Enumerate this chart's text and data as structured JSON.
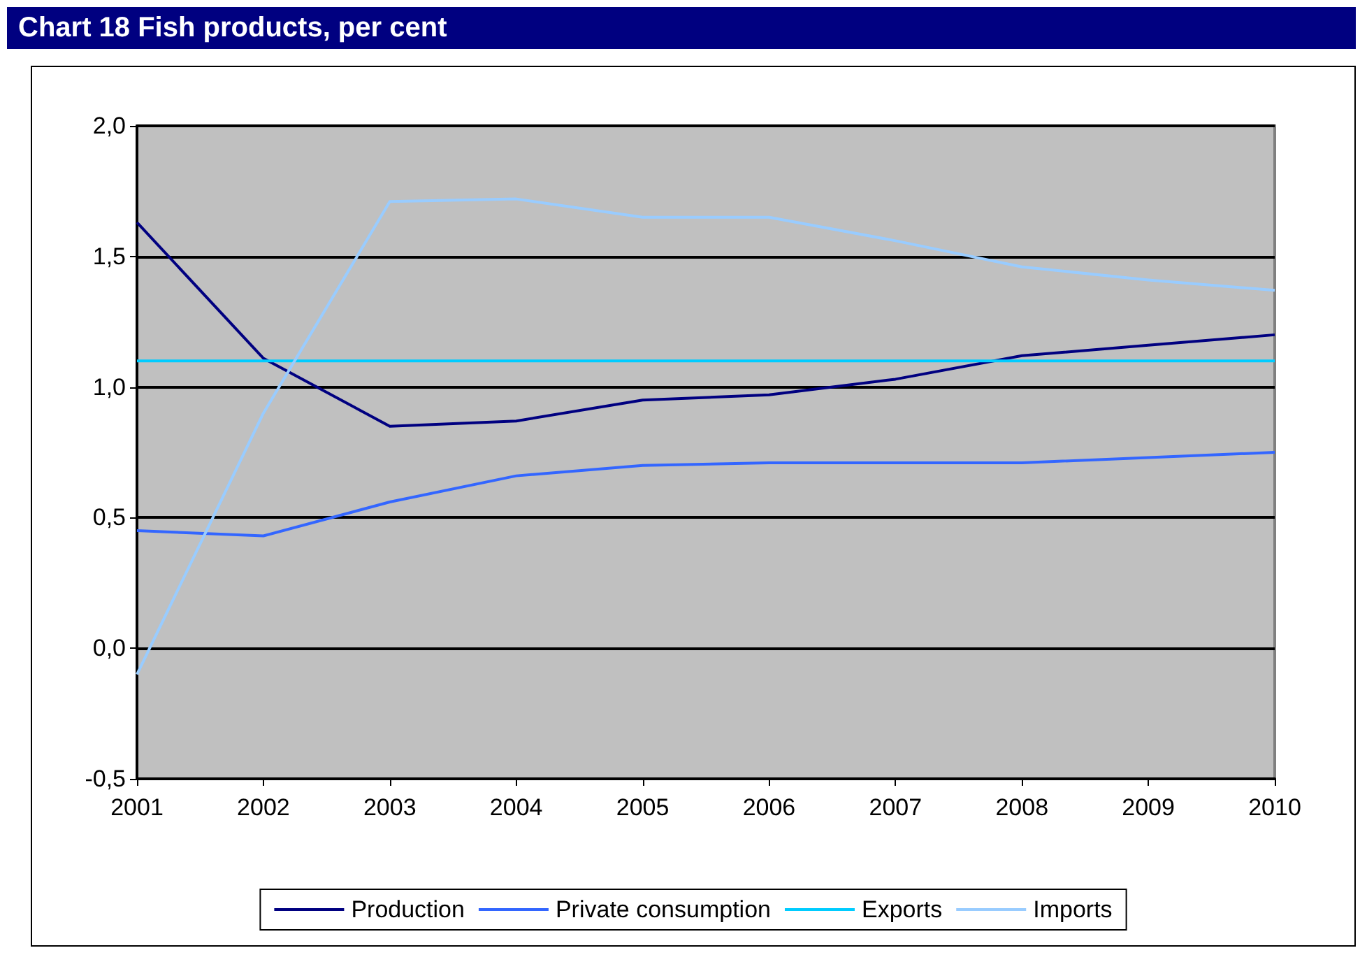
{
  "chart_data": {
    "type": "line",
    "title": "Chart 18 Fish products, per cent",
    "categories": [
      "2001",
      "2002",
      "2003",
      "2004",
      "2005",
      "2006",
      "2007",
      "2008",
      "2009",
      "2010"
    ],
    "series": [
      {
        "name": "Production",
        "color": "#000080",
        "values": [
          1.63,
          1.11,
          0.85,
          0.87,
          0.95,
          0.97,
          1.03,
          1.12,
          1.16,
          1.2
        ]
      },
      {
        "name": "Private consumption",
        "color": "#3366ff",
        "values": [
          0.45,
          0.43,
          0.56,
          0.66,
          0.7,
          0.71,
          0.71,
          0.71,
          0.73,
          0.75
        ]
      },
      {
        "name": "Exports",
        "color": "#00ccff",
        "values": [
          1.1,
          1.1,
          1.1,
          1.1,
          1.1,
          1.1,
          1.1,
          1.1,
          1.1,
          1.1
        ]
      },
      {
        "name": "Imports",
        "color": "#99ccff",
        "values": [
          -0.1,
          0.9,
          1.71,
          1.72,
          1.65,
          1.65,
          1.56,
          1.46,
          1.41,
          1.37
        ]
      }
    ],
    "ylim": [
      -0.5,
      2.0
    ],
    "yticks": [
      {
        "value": -0.5,
        "label": "-0,5"
      },
      {
        "value": 0,
        "label": "0,0"
      },
      {
        "value": 0.5,
        "label": "0,5"
      },
      {
        "value": 1.0,
        "label": "1,0"
      },
      {
        "value": 1.5,
        "label": "1,5"
      },
      {
        "value": 2.0,
        "label": "2,0"
      }
    ],
    "grid": "y",
    "legend": "bottom",
    "marker": "none",
    "line_style": "solid"
  }
}
